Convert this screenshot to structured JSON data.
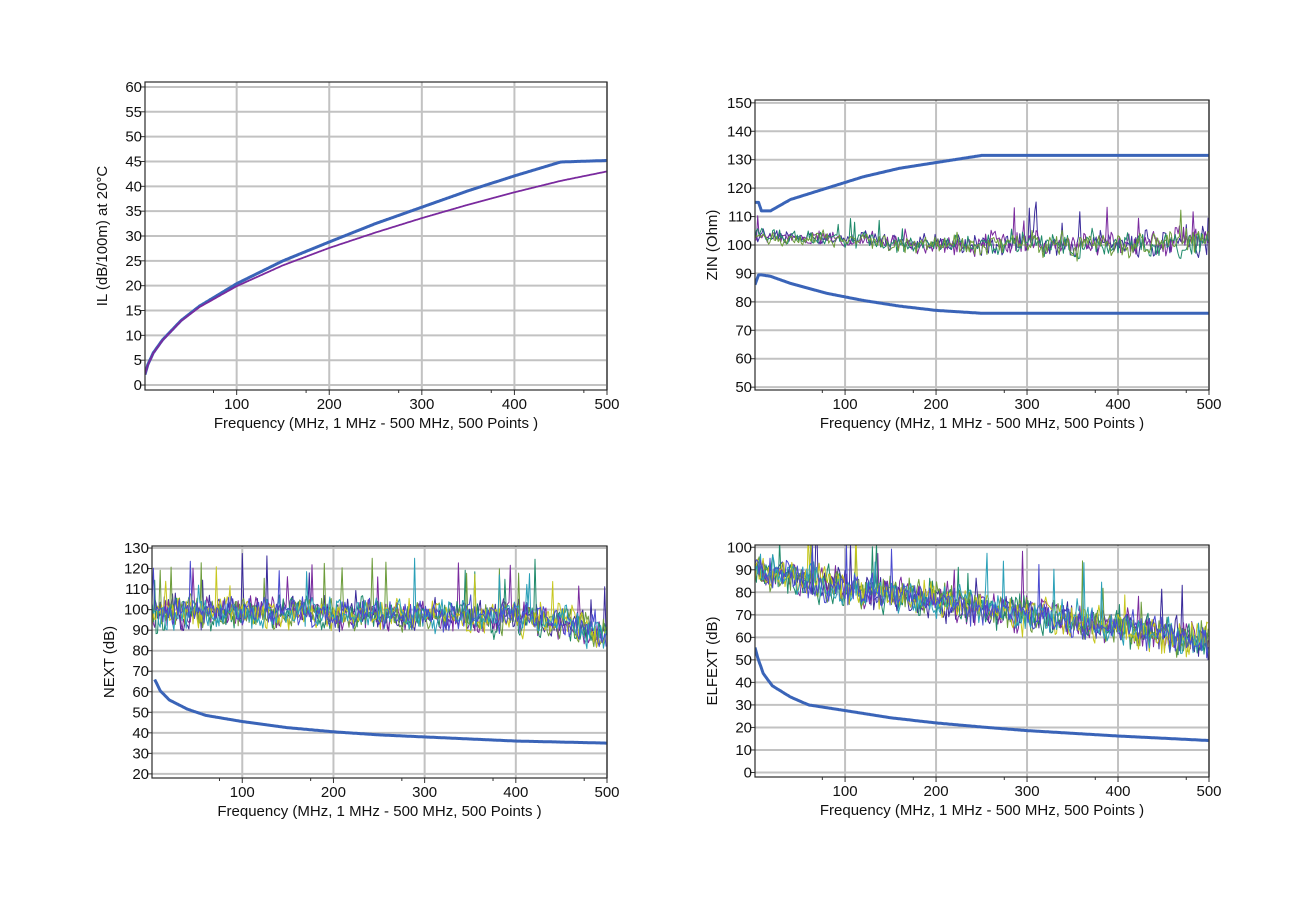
{
  "colors": {
    "limit": "#3a64b8",
    "grid": "#c2c2c2",
    "noise": [
      "#3a2a9a",
      "#7a2a9e",
      "#1f8a6a",
      "#6c9c3a",
      "#c7c71e",
      "#2aa0b8",
      "#4a4ad0"
    ]
  },
  "chart_data": [
    {
      "type": "line",
      "id": "il",
      "xlabel": "Frequency (MHz, 1 MHz - 500 MHz, 500 Points )",
      "ylabel": "IL (dB/100m) at 20°C",
      "xlim": [
        1,
        500
      ],
      "ylim": [
        -1,
        61
      ],
      "xticks": [
        100,
        200,
        300,
        400,
        500
      ],
      "yticks": [
        0,
        5,
        10,
        15,
        20,
        25,
        30,
        35,
        40,
        45,
        50,
        55,
        60
      ],
      "grid": true,
      "series": [
        {
          "role": "limit",
          "x": [
            1,
            4,
            10,
            20,
            40,
            60,
            100,
            150,
            200,
            250,
            300,
            350,
            400,
            450,
            500
          ],
          "y": [
            2.1,
            4.1,
            6.5,
            9.1,
            13.0,
            15.9,
            20.4,
            25.0,
            28.8,
            32.5,
            35.8,
            39.1,
            42.1,
            44.9,
            45.2
          ]
        },
        {
          "role": "measured",
          "x": [
            1,
            4,
            10,
            20,
            40,
            60,
            100,
            150,
            200,
            250,
            300,
            350,
            400,
            450,
            500
          ],
          "y": [
            2.1,
            4.0,
            6.4,
            9.0,
            12.9,
            15.7,
            19.9,
            24.1,
            27.6,
            30.7,
            33.6,
            36.3,
            38.8,
            41.1,
            43.0
          ]
        }
      ]
    },
    {
      "type": "line",
      "id": "zin",
      "xlabel": "Frequency (MHz, 1 MHz - 500 MHz, 500 Points )",
      "ylabel": "ZIN (Ohm)",
      "xlim": [
        1,
        500
      ],
      "ylim": [
        49,
        151
      ],
      "xticks": [
        100,
        200,
        300,
        400,
        500
      ],
      "yticks": [
        50,
        60,
        70,
        80,
        90,
        100,
        110,
        120,
        130,
        140,
        150
      ],
      "grid": true,
      "series": [
        {
          "role": "limit",
          "x": [
            1,
            5,
            8,
            18,
            40,
            80,
            120,
            160,
            200,
            250,
            500
          ],
          "y": [
            115,
            115,
            112,
            112,
            116,
            120,
            124,
            127,
            129,
            131.5,
            131.5
          ]
        },
        {
          "role": "limit",
          "x": [
            1,
            5,
            8,
            18,
            40,
            80,
            120,
            160,
            200,
            250,
            500
          ],
          "y": [
            86,
            89.5,
            89.5,
            89,
            86.5,
            83,
            80.5,
            78.5,
            77,
            76,
            76
          ]
        }
      ],
      "noise_band": {
        "count": 4,
        "x": [
          1,
          100,
          200,
          300,
          400,
          500
        ],
        "center": [
          103,
          102,
          100,
          101,
          100,
          102
        ],
        "amplitude": [
          3,
          3,
          4,
          5,
          5,
          6
        ]
      }
    },
    {
      "type": "line",
      "id": "next",
      "xlabel": "Frequency (MHz, 1 MHz - 500 MHz, 500 Points )",
      "ylabel": "NEXT (dB)",
      "xlim": [
        1,
        500
      ],
      "ylim": [
        18,
        131
      ],
      "xticks": [
        100,
        200,
        300,
        400,
        500
      ],
      "yticks": [
        20,
        30,
        40,
        50,
        60,
        70,
        80,
        90,
        100,
        110,
        120,
        130
      ],
      "grid": true,
      "series": [
        {
          "role": "limit",
          "x": [
            4,
            10,
            20,
            40,
            60,
            100,
            150,
            200,
            250,
            300,
            350,
            400,
            450,
            500
          ],
          "y": [
            66,
            60.5,
            56,
            51.5,
            48.5,
            45.5,
            42.5,
            40.5,
            39,
            38,
            37,
            36,
            35.5,
            35
          ]
        }
      ],
      "noise_band": {
        "count": 7,
        "x": [
          1,
          100,
          200,
          300,
          400,
          460,
          500
        ],
        "center": [
          98,
          99,
          98,
          97,
          96,
          94,
          87
        ],
        "amplitude": [
          9,
          9,
          9,
          9,
          9,
          9,
          9
        ]
      }
    },
    {
      "type": "line",
      "id": "elfext",
      "xlabel": "Frequency (MHz, 1 MHz - 500 MHz, 500 Points )",
      "ylabel": "ELFEXT (dB)",
      "xlim": [
        1,
        500
      ],
      "ylim": [
        -2,
        101
      ],
      "xticks": [
        100,
        200,
        300,
        400,
        500
      ],
      "yticks": [
        0,
        10,
        20,
        30,
        40,
        50,
        60,
        70,
        80,
        90,
        100
      ],
      "grid": true,
      "series": [
        {
          "role": "limit",
          "x": [
            1,
            4,
            10,
            20,
            40,
            60,
            100,
            150,
            200,
            250,
            300,
            350,
            400,
            450,
            500
          ],
          "y": [
            55.5,
            51,
            44,
            38.5,
            33.5,
            30,
            27.5,
            24.3,
            22,
            20.2,
            18.6,
            17.4,
            16.2,
            15.2,
            14.2
          ]
        }
      ],
      "noise_band": {
        "count": 7,
        "x": [
          1,
          50,
          100,
          200,
          300,
          400,
          500
        ],
        "center": [
          90,
          86,
          82,
          76,
          70,
          64,
          58
        ],
        "amplitude": [
          8,
          8,
          9,
          9,
          9,
          9,
          9
        ]
      }
    }
  ]
}
